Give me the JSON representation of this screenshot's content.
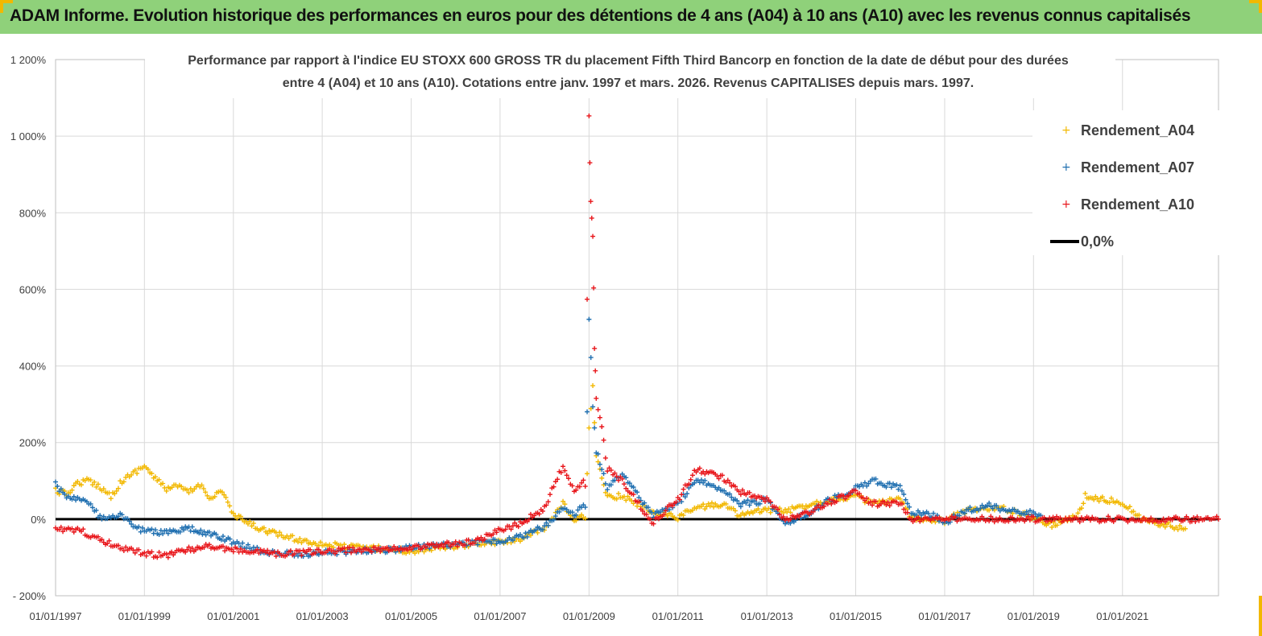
{
  "header": {
    "title": "ADAM Informe. Evolution historique des performances en euros pour des détentions de 4 ans (A04) à 10 ans (A10) avec les revenus connus capitalisés"
  },
  "colors": {
    "banner": "#8fd17a",
    "A04": "#f2b800",
    "A07": "#1f6fb0",
    "A10": "#e8161b",
    "zero": "#000000"
  },
  "chart_data": {
    "type": "scatter",
    "title": "Performance par rapport à l'indice EU STOXX 600 GROSS TR  du placement Fifth Third Bancorp en fonction de la date de début pour des durées entre 4 (A04) et 10 ans (A10). Cotations entre janv. 1997 et mars. 2026. Revenus CAPITALISES depuis mars. 1997.",
    "title_lines": [
      "Performance par rapport à l'indice EU STOXX 600 GROSS TR  du placement Fifth Third Bancorp en fonction de la date de début pour des durées",
      "entre 4 (A04) et 10 ans (A10). Cotations entre janv. 1997 et mars. 2026. Revenus CAPITALISES depuis mars. 1997."
    ],
    "x_axis": {
      "type": "date",
      "range": [
        "1997-01-01",
        "2023-03-01"
      ],
      "tick_labels": [
        "01/01/1997",
        "01/01/1999",
        "01/01/2001",
        "01/01/2003",
        "01/01/2005",
        "01/01/2007",
        "01/01/2009",
        "01/01/2011",
        "01/01/2013",
        "01/01/2015",
        "01/01/2017",
        "01/01/2019",
        "01/01/2021"
      ]
    },
    "y_axis": {
      "unit": "%",
      "range": [
        -200,
        1200
      ],
      "ticks": [
        -200,
        0,
        200,
        400,
        600,
        800,
        1000,
        1200
      ],
      "tick_labels": [
        "- 200%",
        "0%",
        "200%",
        "400%",
        "600%",
        "800%",
        "1 000%",
        "1 200%"
      ]
    },
    "grid": true,
    "legend": {
      "position": "top-right",
      "entries": [
        "Rendement_A04",
        "Rendement_A07",
        "Rendement_A10",
        "0,0%"
      ]
    },
    "series": [
      {
        "name": "Rendement_A04",
        "marker": "+",
        "points": [
          [
            "1997-01-01",
            75
          ],
          [
            "1997-04-01",
            65
          ],
          [
            "1997-07-01",
            95
          ],
          [
            "1997-10-01",
            100
          ],
          [
            "1998-01-01",
            85
          ],
          [
            "1998-04-01",
            60
          ],
          [
            "1998-07-01",
            100
          ],
          [
            "1998-10-01",
            120
          ],
          [
            "1999-01-01",
            140
          ],
          [
            "1999-04-01",
            105
          ],
          [
            "1999-07-01",
            80
          ],
          [
            "1999-10-01",
            85
          ],
          [
            "2000-01-01",
            70
          ],
          [
            "2000-04-01",
            90
          ],
          [
            "2000-07-01",
            55
          ],
          [
            "2000-10-01",
            75
          ],
          [
            "2001-01-01",
            10
          ],
          [
            "2001-04-01",
            -5
          ],
          [
            "2001-07-01",
            -20
          ],
          [
            "2002-01-01",
            -40
          ],
          [
            "2002-07-01",
            -55
          ],
          [
            "2003-01-01",
            -65
          ],
          [
            "2003-07-01",
            -72
          ],
          [
            "2004-01-01",
            -75
          ],
          [
            "2004-07-01",
            -78
          ],
          [
            "2005-01-01",
            -85
          ],
          [
            "2005-07-01",
            -75
          ],
          [
            "2006-01-01",
            -70
          ],
          [
            "2006-07-01",
            -65
          ],
          [
            "2007-01-01",
            -60
          ],
          [
            "2007-07-01",
            -50
          ],
          [
            "2008-01-01",
            -25
          ],
          [
            "2008-06-01",
            40
          ],
          [
            "2008-09-01",
            -5
          ],
          [
            "2008-12-01",
            10
          ],
          [
            "2009-01-01",
            240
          ],
          [
            "2009-02-01",
            340
          ],
          [
            "2009-03-01",
            160
          ],
          [
            "2009-06-01",
            60
          ],
          [
            "2009-10-01",
            60
          ],
          [
            "2010-01-01",
            45
          ],
          [
            "2010-06-01",
            20
          ],
          [
            "2011-01-01",
            5
          ],
          [
            "2011-06-01",
            30
          ],
          [
            "2012-01-01",
            40
          ],
          [
            "2012-06-01",
            10
          ],
          [
            "2013-01-01",
            25
          ],
          [
            "2013-06-01",
            20
          ],
          [
            "2014-01-01",
            40
          ],
          [
            "2014-06-01",
            50
          ],
          [
            "2015-01-01",
            60
          ],
          [
            "2015-06-01",
            40
          ],
          [
            "2016-01-01",
            50
          ],
          [
            "2016-04-01",
            5
          ],
          [
            "2016-10-01",
            0
          ],
          [
            "2017-01-01",
            -5
          ],
          [
            "2017-06-01",
            20
          ],
          [
            "2018-01-01",
            30
          ],
          [
            "2018-06-01",
            25
          ],
          [
            "2019-01-01",
            5
          ],
          [
            "2019-06-01",
            -15
          ],
          [
            "2020-01-01",
            10
          ],
          [
            "2020-03-01",
            60
          ],
          [
            "2020-09-01",
            50
          ],
          [
            "2021-01-01",
            45
          ],
          [
            "2021-06-01",
            0
          ],
          [
            "2022-01-01",
            -15
          ],
          [
            "2022-06-01",
            -25
          ]
        ]
      },
      {
        "name": "Rendement_A07",
        "marker": "+",
        "points": [
          [
            "1997-01-01",
            90
          ],
          [
            "1997-04-01",
            60
          ],
          [
            "1997-07-01",
            55
          ],
          [
            "1997-10-01",
            40
          ],
          [
            "1998-01-01",
            5
          ],
          [
            "1998-04-01",
            0
          ],
          [
            "1998-07-01",
            10
          ],
          [
            "1998-10-01",
            -20
          ],
          [
            "1999-01-01",
            -30
          ],
          [
            "1999-07-01",
            -35
          ],
          [
            "2000-01-01",
            -25
          ],
          [
            "2000-07-01",
            -40
          ],
          [
            "2001-01-01",
            -60
          ],
          [
            "2001-07-01",
            -80
          ],
          [
            "2002-01-01",
            -90
          ],
          [
            "2002-07-01",
            -92
          ],
          [
            "2003-01-01",
            -88
          ],
          [
            "2003-07-01",
            -85
          ],
          [
            "2004-01-01",
            -82
          ],
          [
            "2004-07-01",
            -80
          ],
          [
            "2005-01-01",
            -75
          ],
          [
            "2005-07-01",
            -70
          ],
          [
            "2006-01-01",
            -65
          ],
          [
            "2006-07-01",
            -60
          ],
          [
            "2007-01-01",
            -58
          ],
          [
            "2007-07-01",
            -45
          ],
          [
            "2008-01-01",
            -20
          ],
          [
            "2008-06-01",
            30
          ],
          [
            "2008-09-01",
            10
          ],
          [
            "2008-12-01",
            40
          ],
          [
            "2009-01-01",
            520
          ],
          [
            "2009-02-01",
            300
          ],
          [
            "2009-03-01",
            180
          ],
          [
            "2009-06-01",
            80
          ],
          [
            "2009-10-01",
            120
          ],
          [
            "2010-01-01",
            80
          ],
          [
            "2010-06-01",
            10
          ],
          [
            "2011-01-01",
            40
          ],
          [
            "2011-06-01",
            100
          ],
          [
            "2012-01-01",
            80
          ],
          [
            "2012-06-01",
            40
          ],
          [
            "2013-01-01",
            50
          ],
          [
            "2013-06-01",
            -10
          ],
          [
            "2014-01-01",
            20
          ],
          [
            "2014-06-01",
            50
          ],
          [
            "2015-01-01",
            80
          ],
          [
            "2015-06-01",
            100
          ],
          [
            "2016-01-01",
            80
          ],
          [
            "2016-04-01",
            20
          ],
          [
            "2016-10-01",
            10
          ],
          [
            "2017-01-01",
            -10
          ],
          [
            "2017-06-01",
            20
          ],
          [
            "2018-01-01",
            35
          ],
          [
            "2018-06-01",
            25
          ],
          [
            "2019-01-01",
            15
          ],
          [
            "2019-03-01",
            10
          ]
        ]
      },
      {
        "name": "Rendement_A10",
        "marker": "+",
        "points": [
          [
            "1997-01-01",
            -20
          ],
          [
            "1997-04-01",
            -30
          ],
          [
            "1997-07-01",
            -25
          ],
          [
            "1997-10-01",
            -40
          ],
          [
            "1998-01-01",
            -55
          ],
          [
            "1998-04-01",
            -65
          ],
          [
            "1998-07-01",
            -75
          ],
          [
            "1998-10-01",
            -80
          ],
          [
            "1999-01-01",
            -90
          ],
          [
            "1999-07-01",
            -95
          ],
          [
            "2000-01-01",
            -80
          ],
          [
            "2000-07-01",
            -70
          ],
          [
            "2001-01-01",
            -80
          ],
          [
            "2001-07-01",
            -85
          ],
          [
            "2002-01-01",
            -90
          ],
          [
            "2002-07-01",
            -88
          ],
          [
            "2003-01-01",
            -85
          ],
          [
            "2003-07-01",
            -82
          ],
          [
            "2004-01-01",
            -80
          ],
          [
            "2004-07-01",
            -78
          ],
          [
            "2005-01-01",
            -75
          ],
          [
            "2005-07-01",
            -70
          ],
          [
            "2006-01-01",
            -65
          ],
          [
            "2006-07-01",
            -55
          ],
          [
            "2007-01-01",
            -30
          ],
          [
            "2007-07-01",
            -10
          ],
          [
            "2008-01-01",
            30
          ],
          [
            "2008-06-01",
            140
          ],
          [
            "2008-09-01",
            70
          ],
          [
            "2008-12-01",
            100
          ],
          [
            "2009-01-01",
            1050
          ],
          [
            "2009-01-15",
            830
          ],
          [
            "2009-02-01",
            740
          ],
          [
            "2009-02-15",
            450
          ],
          [
            "2009-03-01",
            330
          ],
          [
            "2009-06-01",
            130
          ],
          [
            "2009-10-01",
            100
          ],
          [
            "2010-01-01",
            60
          ],
          [
            "2010-06-01",
            -10
          ],
          [
            "2011-01-01",
            50
          ],
          [
            "2011-06-01",
            130
          ],
          [
            "2012-01-01",
            110
          ],
          [
            "2012-06-01",
            70
          ],
          [
            "2013-01-01",
            50
          ],
          [
            "2013-06-01",
            0
          ],
          [
            "2014-01-01",
            20
          ],
          [
            "2014-06-01",
            45
          ],
          [
            "2015-01-01",
            70
          ],
          [
            "2015-06-01",
            40
          ],
          [
            "2016-01-01",
            40
          ],
          [
            "2016-04-01",
            0
          ],
          [
            "2017-01-01",
            0
          ],
          [
            "2019-01-01",
            0
          ],
          [
            "2021-01-01",
            0
          ],
          [
            "2023-03-01",
            0
          ]
        ]
      }
    ],
    "reference_line": {
      "name": "0,0%",
      "y": 0
    }
  }
}
